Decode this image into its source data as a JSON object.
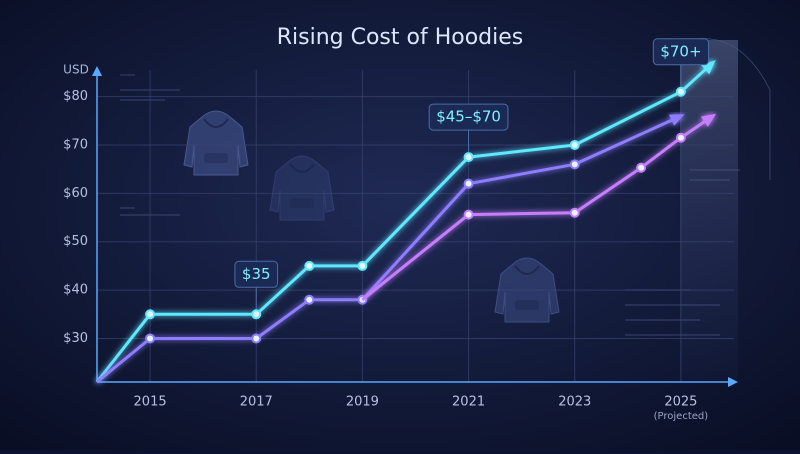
{
  "chart_data": {
    "type": "line",
    "title": "Rising Cost of Hoodies",
    "y_label": "USD",
    "xlim": [
      2014,
      2026
    ],
    "ylim": [
      21,
      85.5
    ],
    "xticks": [
      2015,
      2017,
      2019,
      2021,
      2023,
      2025
    ],
    "yticks": [
      {
        "value": 30,
        "label": "$30"
      },
      {
        "value": 40,
        "label": "$40"
      },
      {
        "value": 50,
        "label": "$50"
      },
      {
        "value": 60,
        "label": "$60"
      },
      {
        "value": 70,
        "label": "$70"
      },
      {
        "value": 80,
        "label": "$80"
      }
    ],
    "grid": true,
    "series": [
      {
        "color": "#5ee8ff",
        "x": [
          2014,
          2015,
          2017,
          2018,
          2019,
          2021,
          2023,
          2025,
          2025.6
        ],
        "values": [
          21,
          35,
          35,
          45,
          45,
          67.5,
          70,
          81,
          87
        ]
      },
      {
        "color": "#8f7dff",
        "x": [
          2014,
          2015,
          2017,
          2018,
          2019,
          2021,
          2023,
          2025
        ],
        "values": [
          21,
          30,
          30,
          38,
          38,
          62,
          66,
          76
        ]
      },
      {
        "color": "#c77dff",
        "x": [
          2019,
          2021,
          2023,
          2024.25,
          2025,
          2025.6
        ],
        "values": [
          38,
          55.6,
          56,
          65.3,
          71.5,
          76
        ]
      }
    ],
    "annotations": [
      {
        "text": "$35",
        "x": 2017,
        "y": 35
      },
      {
        "text": "$45–$70",
        "x": 2021,
        "y": 67.5
      },
      {
        "text": "$70+",
        "x": 2025,
        "y": 81
      }
    ],
    "x_note": "(Projected)"
  }
}
